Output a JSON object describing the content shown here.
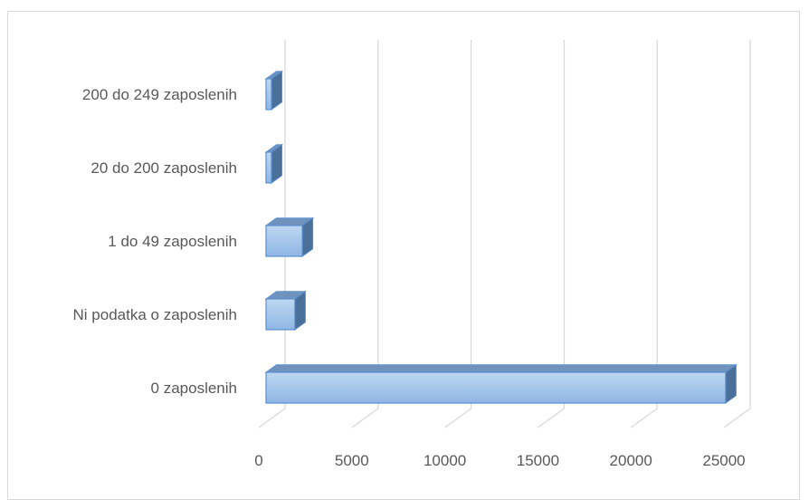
{
  "chart_data": {
    "type": "bar",
    "orientation": "horizontal",
    "style": "3d-clustered-bar",
    "categories": [
      "0 zaposlenih",
      "Ni podatka o zaposlenih",
      "1 do 49 zaposlenih",
      "20 do 200 zaposlenih",
      "200 do 249 zaposlenih"
    ],
    "values": [
      24700,
      1550,
      1950,
      40,
      40
    ],
    "xlim": [
      0,
      25000
    ],
    "xticks": [
      "0",
      "5000",
      "10000",
      "15000",
      "20000",
      "25000"
    ],
    "grid": true,
    "legend": "none",
    "colors": {
      "bar_top": "#bdd7f1",
      "bar_bottom": "#8fb7e4",
      "bar_side": "#4a6f99",
      "bar_cap": "#6f93bd",
      "bar_stroke": "#5b8fd1",
      "grid": "#d9d9d9",
      "text": "#595959"
    }
  }
}
